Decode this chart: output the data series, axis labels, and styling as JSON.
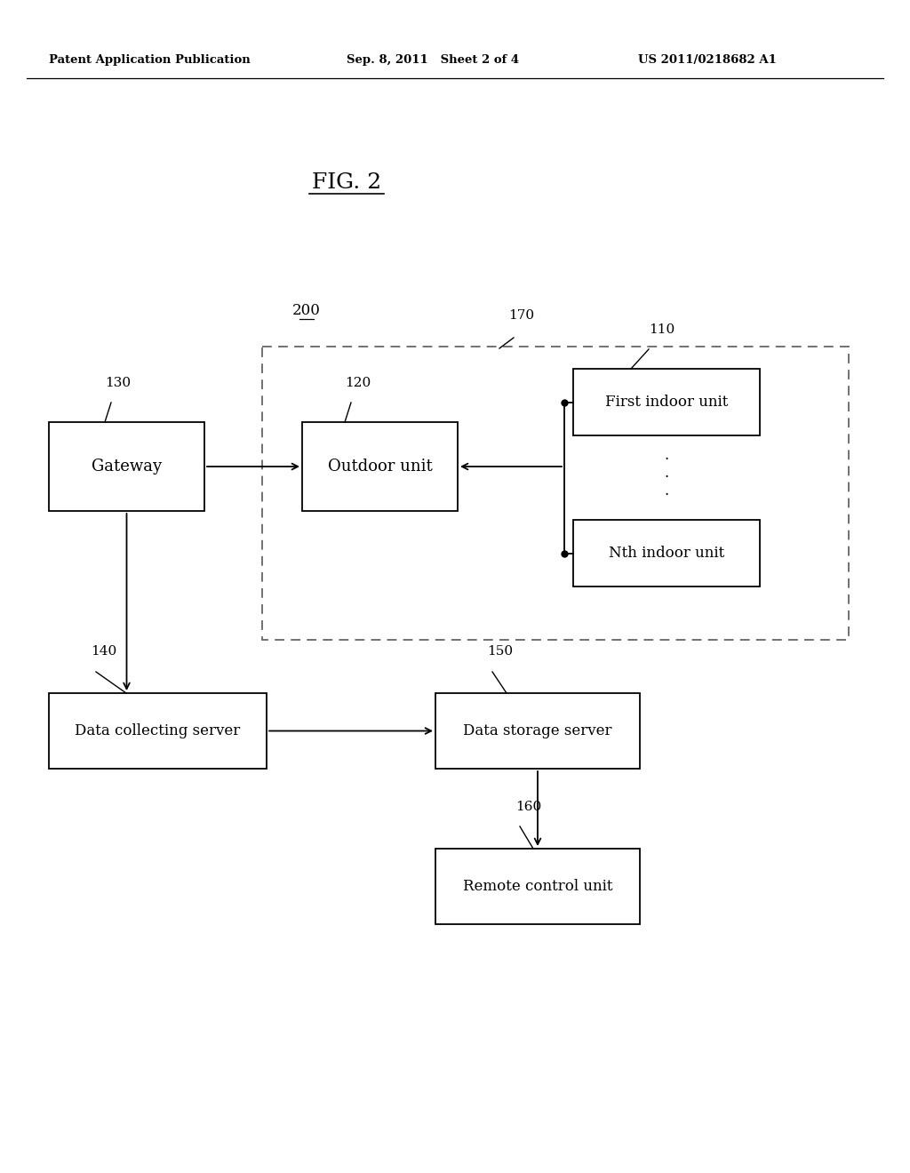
{
  "fig_width": 10.24,
  "fig_height": 13.2,
  "bg_color": "#ffffff",
  "header_left": "Patent Application Publication",
  "header_mid": "Sep. 8, 2011   Sheet 2 of 4",
  "header_right": "US 2011/0218682 A1",
  "fig_label": "FIG. 2",
  "label_200": "200",
  "label_170": "170",
  "label_110": "110",
  "label_130": "130",
  "label_120": "120",
  "label_140": "140",
  "label_150": "150",
  "label_160": "160",
  "box_gateway": "Gateway",
  "box_outdoor": "Outdoor unit",
  "box_first_indoor": "First indoor unit",
  "box_nth_indoor": "Nth indoor unit",
  "box_data_collecting": "Data collecting server",
  "box_data_storage": "Data storage server",
  "box_remote": "Remote control unit",
  "line_color": "#000000",
  "bg_color2": "#ffffff"
}
